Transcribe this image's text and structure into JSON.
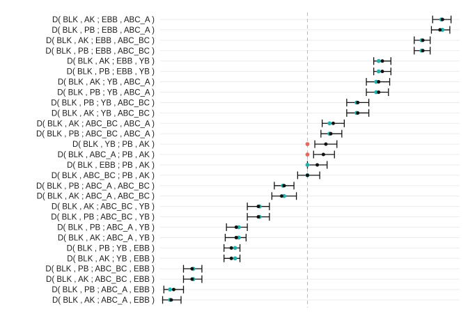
{
  "chart_data": {
    "type": "scatter",
    "title": "",
    "xlabel": "",
    "ylabel": "",
    "grid": true,
    "xlim": [
      -0.6,
      0.62
    ],
    "reference_line": 0,
    "colors": {
      "estimate": "#111111",
      "teal": "#1fb3ae",
      "red": "#e8665c",
      "whisker": "#111111",
      "grid": "#ebebeb",
      "refline": "#b8b8b8"
    },
    "rows": [
      {
        "label": "D( BLK , AK ; EBB , ABC_A )",
        "est": 0.55,
        "lo": 0.51,
        "hi": 0.585,
        "obs": 0.545,
        "obs_color": "teal"
      },
      {
        "label": "D( BLK , PB ; EBB , ABC_A )",
        "est": 0.54,
        "lo": 0.505,
        "hi": 0.58,
        "obs": 0.55,
        "obs_color": "teal"
      },
      {
        "label": "D( BLK , AK ; EBB , ABC_BC )",
        "est": 0.47,
        "lo": 0.435,
        "hi": 0.5,
        "obs": 0.465,
        "obs_color": "teal"
      },
      {
        "label": "D( BLK , PB ; EBB , ABC_BC )",
        "est": 0.47,
        "lo": 0.435,
        "hi": 0.5,
        "obs": 0.465,
        "obs_color": "teal"
      },
      {
        "label": "D( BLK , AK ; EBB , YB )",
        "est": 0.305,
        "lo": 0.27,
        "hi": 0.34,
        "obs": 0.29,
        "obs_color": "teal"
      },
      {
        "label": "D( BLK , PB ; EBB , YB )",
        "est": 0.305,
        "lo": 0.27,
        "hi": 0.34,
        "obs": 0.29,
        "obs_color": "teal"
      },
      {
        "label": "D( BLK , AK ; YB , ABC_A )",
        "est": 0.29,
        "lo": 0.24,
        "hi": 0.335,
        "obs": 0.28,
        "obs_color": "teal"
      },
      {
        "label": "D( BLK , PB ; YB , ABC_A )",
        "est": 0.29,
        "lo": 0.24,
        "hi": 0.33,
        "obs": 0.28,
        "obs_color": "teal"
      },
      {
        "label": "D( BLK , PB ; YB , ABC_BC )",
        "est": 0.205,
        "lo": 0.16,
        "hi": 0.25,
        "obs": 0.2,
        "obs_color": "teal"
      },
      {
        "label": "D( BLK , AK ; YB , ABC_BC )",
        "est": 0.205,
        "lo": 0.16,
        "hi": 0.25,
        "obs": 0.2,
        "obs_color": "teal"
      },
      {
        "label": "D( BLK , AK ; ABC_BC , ABC_A )",
        "est": 0.105,
        "lo": 0.06,
        "hi": 0.15,
        "obs": 0.09,
        "obs_color": "teal"
      },
      {
        "label": "D( BLK , PB ; ABC_BC , ABC_A )",
        "est": 0.095,
        "lo": 0.055,
        "hi": 0.14,
        "obs": 0.09,
        "obs_color": "teal"
      },
      {
        "label": "D( BLK , YB ; PB , AK )",
        "est": 0.075,
        "lo": 0.03,
        "hi": 0.12,
        "obs": 0.0,
        "obs_color": "red"
      },
      {
        "label": "D( BLK , ABC_A ; PB , AK )",
        "est": 0.065,
        "lo": 0.025,
        "hi": 0.11,
        "obs": 0.0,
        "obs_color": "red"
      },
      {
        "label": "D( BLK , EBB ; PB , AK )",
        "est": 0.04,
        "lo": 0.0,
        "hi": 0.08,
        "obs": 0.0,
        "obs_color": "teal"
      },
      {
        "label": "D( BLK , ABC_BC ; PB , AK )",
        "est": 0.0,
        "lo": -0.04,
        "hi": 0.05,
        "obs": 0.0,
        "obs_color": "teal"
      },
      {
        "label": "D( BLK , PB ; ABC_A , ABC_BC )",
        "est": -0.095,
        "lo": -0.135,
        "hi": -0.055,
        "obs": -0.1,
        "obs_color": "teal"
      },
      {
        "label": "D( BLK , AK ; ABC_A , ABC_BC )",
        "est": -0.105,
        "lo": -0.145,
        "hi": -0.045,
        "obs": -0.095,
        "obs_color": "teal"
      },
      {
        "label": "D( BLK , AK ; ABC_BC , YB )",
        "est": -0.2,
        "lo": -0.245,
        "hi": -0.155,
        "obs": -0.195,
        "obs_color": "teal"
      },
      {
        "label": "D( BLK , PB ; ABC_BC , YB )",
        "est": -0.2,
        "lo": -0.245,
        "hi": -0.155,
        "obs": -0.195,
        "obs_color": "teal"
      },
      {
        "label": "D( BLK , PB ; ABC_A , YB )",
        "est": -0.29,
        "lo": -0.33,
        "hi": -0.245,
        "obs": -0.28,
        "obs_color": "teal"
      },
      {
        "label": "D( BLK , AK ; ABC_A , YB )",
        "est": -0.29,
        "lo": -0.335,
        "hi": -0.25,
        "obs": -0.28,
        "obs_color": "teal"
      },
      {
        "label": "D( BLK , PB ; YB , EBB )",
        "est": -0.31,
        "lo": -0.34,
        "hi": -0.275,
        "obs": -0.295,
        "obs_color": "teal"
      },
      {
        "label": "D( BLK , AK ; YB , EBB )",
        "est": -0.31,
        "lo": -0.34,
        "hi": -0.275,
        "obs": -0.295,
        "obs_color": "teal"
      },
      {
        "label": "D( BLK , PB ; ABC_BC , EBB )",
        "est": -0.47,
        "lo": -0.505,
        "hi": -0.43,
        "obs": -0.465,
        "obs_color": "teal"
      },
      {
        "label": "D( BLK , AK ; ABC_BC , EBB )",
        "est": -0.47,
        "lo": -0.505,
        "hi": -0.43,
        "obs": -0.465,
        "obs_color": "teal"
      },
      {
        "label": "D( BLK , PB ; ABC_A , EBB )",
        "est": -0.545,
        "lo": -0.585,
        "hi": -0.505,
        "obs": -0.56,
        "obs_color": "teal"
      },
      {
        "label": "D( BLK , AK ; ABC_A , EBB )",
        "est": -0.555,
        "lo": -0.59,
        "hi": -0.515,
        "obs": -0.56,
        "obs_color": "teal"
      }
    ]
  }
}
